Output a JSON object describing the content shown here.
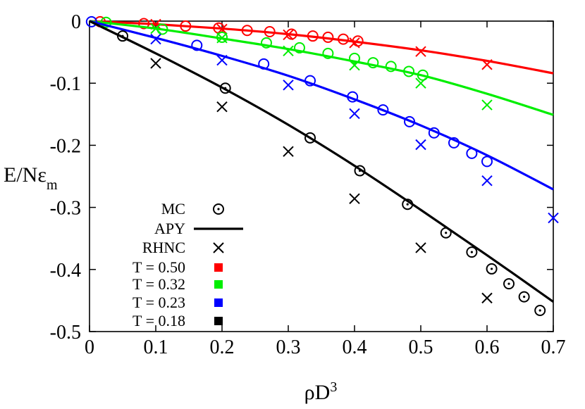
{
  "chart_data": {
    "type": "scatter",
    "title": "",
    "xlabel": "ρD³",
    "xlabel_base": "ρD",
    "xlabel_sup": "3",
    "ylabel": "E/Nε_m",
    "ylabel_base": "E/Nε",
    "ylabel_sub": "m",
    "xlim": [
      0,
      0.7
    ],
    "ylim": [
      -0.5,
      0
    ],
    "xticks": [
      "0",
      "0.1",
      "0.2",
      "0.3",
      "0.4",
      "0.5",
      "0.6",
      "0.7"
    ],
    "yticks": [
      "0",
      "-0.1",
      "-0.2",
      "-0.3",
      "-0.4",
      "-0.5"
    ],
    "grid": false,
    "legend_position": "bottom-left",
    "legend": {
      "markers": [
        "MC",
        "APY",
        "RHNC"
      ],
      "temperatures": [
        "T = 0.50",
        "T = 0.32",
        "T = 0.23",
        "T = 0.18"
      ]
    },
    "series": [
      {
        "name": "T = 0.50",
        "color": "#ff0000",
        "mc": [
          [
            0.016,
            -0.001
          ],
          [
            0.082,
            -0.004
          ],
          [
            0.145,
            -0.008
          ],
          [
            0.195,
            -0.011
          ],
          [
            0.238,
            -0.015
          ],
          [
            0.272,
            -0.017
          ],
          [
            0.305,
            -0.021
          ],
          [
            0.337,
            -0.024
          ],
          [
            0.36,
            -0.026
          ],
          [
            0.383,
            -0.029
          ],
          [
            0.405,
            -0.032
          ]
        ],
        "apy": [
          [
            0,
            0
          ],
          [
            0.1,
            -0.005
          ],
          [
            0.2,
            -0.012
          ],
          [
            0.3,
            -0.021
          ],
          [
            0.4,
            -0.033
          ],
          [
            0.5,
            -0.047
          ],
          [
            0.6,
            -0.064
          ],
          [
            0.7,
            -0.084
          ]
        ],
        "rhnc": [
          [
            0.1,
            -0.005
          ],
          [
            0.2,
            -0.013
          ],
          [
            0.3,
            -0.022
          ],
          [
            0.4,
            -0.035
          ],
          [
            0.5,
            -0.049
          ],
          [
            0.6,
            -0.07
          ]
        ]
      },
      {
        "name": "T = 0.32",
        "color": "#00ee00",
        "mc": [
          [
            0.025,
            -0.002
          ],
          [
            0.11,
            -0.013
          ],
          [
            0.2,
            -0.026
          ],
          [
            0.267,
            -0.035
          ],
          [
            0.317,
            -0.043
          ],
          [
            0.36,
            -0.052
          ],
          [
            0.4,
            -0.06
          ],
          [
            0.428,
            -0.067
          ],
          [
            0.455,
            -0.073
          ],
          [
            0.482,
            -0.081
          ],
          [
            0.503,
            -0.087
          ]
        ],
        "apy": [
          [
            0,
            0
          ],
          [
            0.1,
            -0.012
          ],
          [
            0.2,
            -0.028
          ],
          [
            0.3,
            -0.045
          ],
          [
            0.4,
            -0.065
          ],
          [
            0.5,
            -0.087
          ],
          [
            0.6,
            -0.117
          ],
          [
            0.7,
            -0.151
          ]
        ],
        "rhnc": [
          [
            0.1,
            -0.012
          ],
          [
            0.2,
            -0.027
          ],
          [
            0.3,
            -0.048
          ],
          [
            0.4,
            -0.071
          ],
          [
            0.5,
            -0.1
          ],
          [
            0.6,
            -0.135
          ]
        ]
      },
      {
        "name": "T = 0.23",
        "color": "#0000ff",
        "mc": [
          [
            0.003,
            -0.001
          ],
          [
            0.162,
            -0.039
          ],
          [
            0.263,
            -0.069
          ],
          [
            0.333,
            -0.096
          ],
          [
            0.397,
            -0.122
          ],
          [
            0.443,
            -0.143
          ],
          [
            0.483,
            -0.162
          ],
          [
            0.52,
            -0.18
          ],
          [
            0.55,
            -0.196
          ],
          [
            0.577,
            -0.213
          ],
          [
            0.6,
            -0.226
          ]
        ],
        "apy": [
          [
            0,
            0
          ],
          [
            0.1,
            -0.027
          ],
          [
            0.2,
            -0.056
          ],
          [
            0.3,
            -0.088
          ],
          [
            0.4,
            -0.126
          ],
          [
            0.5,
            -0.168
          ],
          [
            0.6,
            -0.216
          ],
          [
            0.7,
            -0.271
          ]
        ],
        "rhnc": [
          [
            0.1,
            -0.029
          ],
          [
            0.2,
            -0.063
          ],
          [
            0.3,
            -0.103
          ],
          [
            0.4,
            -0.149
          ],
          [
            0.5,
            -0.199
          ],
          [
            0.6,
            -0.257
          ],
          [
            0.7,
            -0.317
          ]
        ]
      },
      {
        "name": "T = 0.18",
        "color": "#000000",
        "mc": [
          [
            0.05,
            -0.024
          ],
          [
            0.205,
            -0.108
          ],
          [
            0.333,
            -0.188
          ],
          [
            0.408,
            -0.241
          ],
          [
            0.48,
            -0.295
          ],
          [
            0.538,
            -0.341
          ],
          [
            0.577,
            -0.372
          ],
          [
            0.607,
            -0.399
          ],
          [
            0.633,
            -0.423
          ],
          [
            0.656,
            -0.444
          ],
          [
            0.68,
            -0.466
          ]
        ],
        "apy": [
          [
            0,
            0
          ],
          [
            0.1,
            -0.052
          ],
          [
            0.2,
            -0.107
          ],
          [
            0.3,
            -0.167
          ],
          [
            0.4,
            -0.233
          ],
          [
            0.5,
            -0.304
          ],
          [
            0.6,
            -0.377
          ],
          [
            0.7,
            -0.452
          ]
        ],
        "rhnc": [
          [
            0.1,
            -0.068
          ],
          [
            0.2,
            -0.138
          ],
          [
            0.3,
            -0.21
          ],
          [
            0.4,
            -0.286
          ],
          [
            0.5,
            -0.365
          ],
          [
            0.6,
            -0.446
          ]
        ]
      }
    ]
  }
}
